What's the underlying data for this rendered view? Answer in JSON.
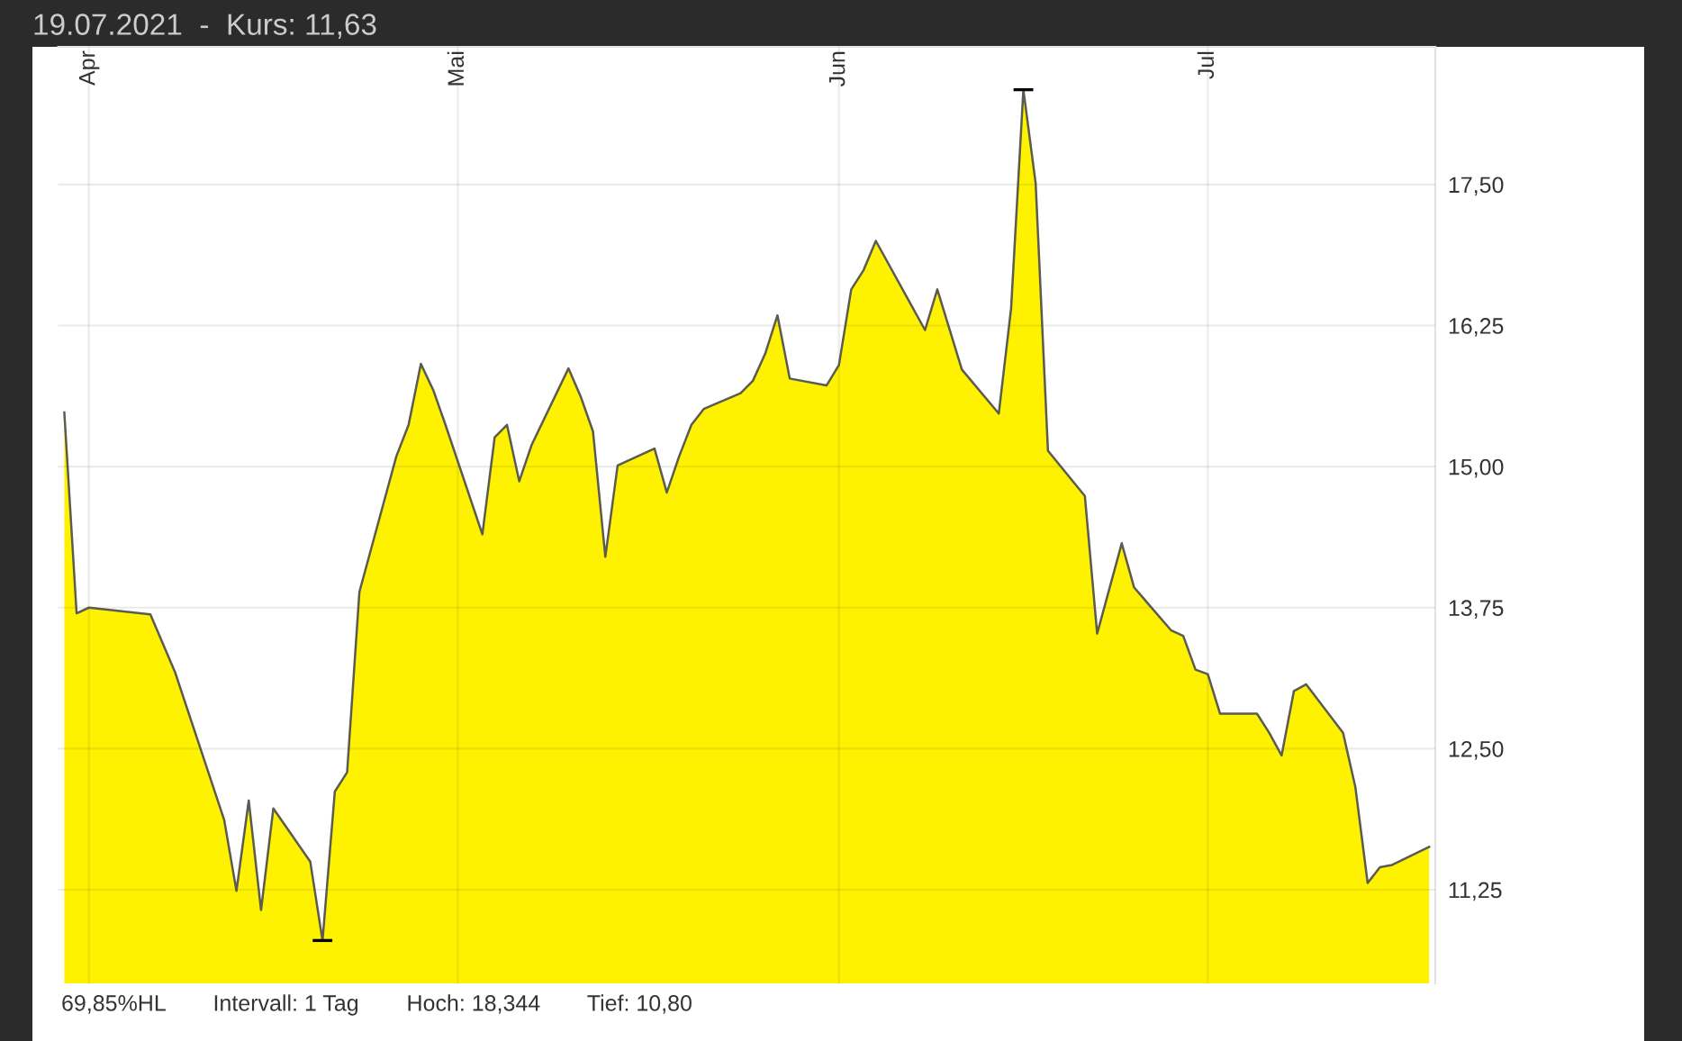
{
  "chart_data": {
    "type": "area",
    "title": "19.07.2021  -  Kurs: 11,63",
    "grid": true,
    "color": "#fff200",
    "x": [
      "2021-03-30",
      "2021-03-31",
      "2021-04-01",
      "2021-04-06",
      "2021-04-08",
      "2021-04-12",
      "2021-04-13",
      "2021-04-14",
      "2021-04-15",
      "2021-04-16",
      "2021-04-19",
      "2021-04-20",
      "2021-04-21",
      "2021-04-22",
      "2021-04-23",
      "2021-04-26",
      "2021-04-27",
      "2021-04-28",
      "2021-04-29",
      "2021-04-30",
      "2021-05-03",
      "2021-05-04",
      "2021-05-05",
      "2021-05-06",
      "2021-05-07",
      "2021-05-10",
      "2021-05-11",
      "2021-05-12",
      "2021-05-13",
      "2021-05-14",
      "2021-05-17",
      "2021-05-18",
      "2021-05-19",
      "2021-05-20",
      "2021-05-21",
      "2021-05-24",
      "2021-05-25",
      "2021-05-26",
      "2021-05-27",
      "2021-05-28",
      "2021-05-31",
      "2021-06-01",
      "2021-06-02",
      "2021-06-03",
      "2021-06-04",
      "2021-06-08",
      "2021-06-09",
      "2021-06-11",
      "2021-06-14",
      "2021-06-15",
      "2021-06-16",
      "2021-06-17",
      "2021-06-18",
      "2021-06-21",
      "2021-06-22",
      "2021-06-24",
      "2021-06-25",
      "2021-06-28",
      "2021-06-29",
      "2021-06-30",
      "2021-07-01",
      "2021-07-02",
      "2021-07-05",
      "2021-07-06",
      "2021-07-07",
      "2021-07-08",
      "2021-07-09",
      "2021-07-12",
      "2021-07-13",
      "2021-07-14",
      "2021-07-15",
      "2021-07-16",
      "2021-07-19"
    ],
    "values": [
      15.48,
      13.7,
      13.75,
      13.69,
      13.18,
      11.87,
      11.24,
      12.04,
      11.07,
      11.97,
      11.5,
      10.8,
      12.12,
      12.29,
      13.89,
      15.09,
      15.37,
      15.91,
      15.68,
      15.37,
      14.4,
      15.26,
      15.37,
      14.87,
      15.19,
      15.87,
      15.62,
      15.31,
      14.2,
      15.01,
      15.16,
      14.77,
      15.09,
      15.37,
      15.51,
      15.65,
      15.76,
      16.0,
      16.34,
      15.78,
      15.72,
      15.9,
      16.57,
      16.74,
      17.0,
      16.21,
      16.57,
      15.86,
      15.47,
      16.4,
      18.34,
      17.51,
      15.14,
      14.74,
      13.52,
      14.32,
      13.93,
      13.55,
      13.5,
      13.2,
      13.16,
      12.81,
      12.81,
      12.64,
      12.44,
      13.01,
      13.07,
      12.64,
      12.16,
      11.31,
      11.45,
      11.47,
      11.63
    ],
    "xlim": [
      "2021-03-29T12:00",
      "2021-07-19T12:00"
    ],
    "xticks": [
      {
        "value": "2021-04-01",
        "label": "Apr"
      },
      {
        "value": "2021-05-01",
        "label": "Mai"
      },
      {
        "value": "2021-06-01",
        "label": "Jun"
      },
      {
        "value": "2021-07-01",
        "label": "Jul"
      }
    ],
    "ylim": [
      10.42,
      18.72
    ],
    "yticks": [
      {
        "value": 11.25,
        "label": "11,25"
      },
      {
        "value": 12.5,
        "label": "12,50"
      },
      {
        "value": 13.75,
        "label": "13,75"
      },
      {
        "value": 15.0,
        "label": "15,00"
      },
      {
        "value": 16.25,
        "label": "16,25"
      },
      {
        "value": 17.5,
        "label": "17,50"
      }
    ],
    "annotations": [
      "69,85%HL",
      "Intervall: 1 Tag",
      "Hoch: 18,344",
      "Tief: 10,80"
    ]
  }
}
